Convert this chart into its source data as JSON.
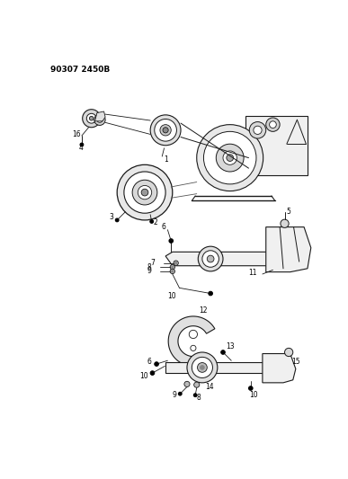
{
  "title": "90307 2450B",
  "background_color": "#ffffff",
  "line_color": "#1a1a1a",
  "text_color": "#000000",
  "fig_width": 3.87,
  "fig_height": 5.33,
  "dpi": 100
}
